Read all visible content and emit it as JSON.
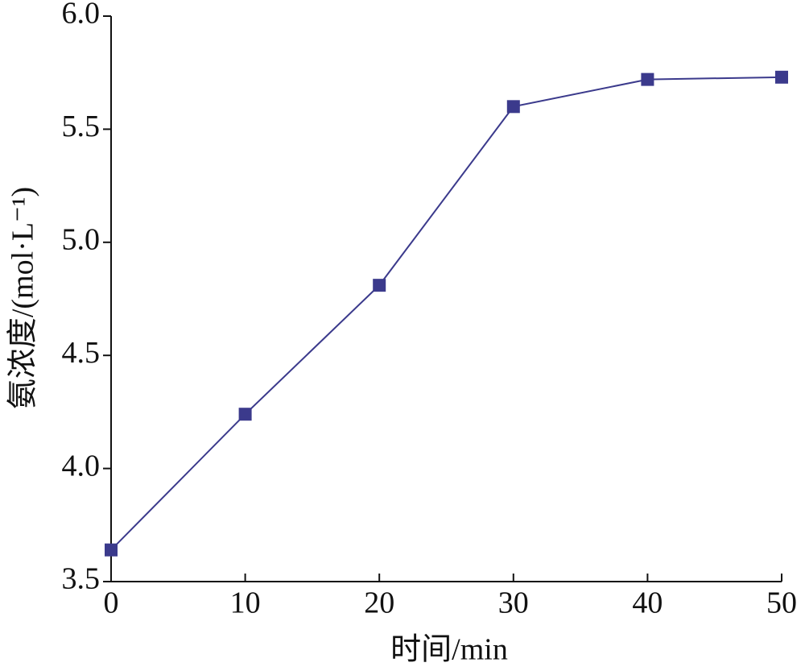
{
  "chart_data": {
    "type": "line",
    "x_label": "时间/min",
    "y_label": "氨浓度/(mol·L⁻¹)",
    "series": [
      {
        "name": "氨浓度",
        "color": "#3b3a8c",
        "x": [
          0,
          10,
          20,
          30,
          40,
          50
        ],
        "values": [
          3.64,
          4.24,
          4.81,
          5.6,
          5.72,
          5.73
        ]
      }
    ],
    "xlim": [
      0,
      50
    ],
    "xticks": [
      0,
      10,
      20,
      30,
      40,
      50
    ],
    "ylim": [
      3.5,
      6.0
    ],
    "yticks": [
      {
        "value": 3.5,
        "label": "3.5"
      },
      {
        "value": 4.0,
        "label": "4.0"
      },
      {
        "value": 4.5,
        "label": "4.5"
      },
      {
        "value": 5.0,
        "label": "5.0"
      },
      {
        "value": 5.5,
        "label": "5.5"
      },
      {
        "value": 6.0,
        "label": "6.0"
      }
    ],
    "grid": false
  }
}
